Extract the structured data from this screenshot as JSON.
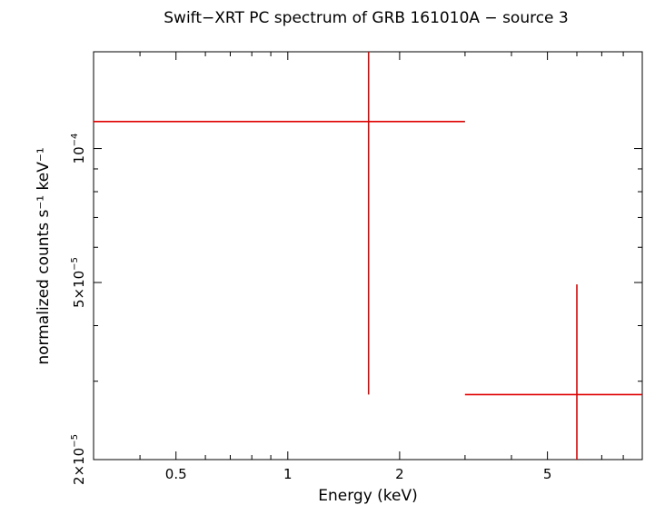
{
  "chart_data": {
    "type": "scatter",
    "title": "Swift−XRT PC spectrum of GRB 161010A − source 3",
    "xlabel": "Energy (keV)",
    "ylabel": "normalized counts s⁻¹ keV⁻¹",
    "x_scale": "log",
    "y_scale": "log",
    "xlim": [
      0.3,
      9.0
    ],
    "ylim": [
      2e-05,
      0.000165
    ],
    "x_ticks": [
      {
        "value": 0.5,
        "label": "0.5"
      },
      {
        "value": 1,
        "label": "1"
      },
      {
        "value": 2,
        "label": "2"
      },
      {
        "value": 5,
        "label": "5"
      }
    ],
    "y_ticks": [
      {
        "value": 2e-05,
        "base": "2×10",
        "exp": "−5"
      },
      {
        "value": 5e-05,
        "base": "5×10",
        "exp": "−5"
      },
      {
        "value": 0.0001,
        "base": "10",
        "exp": "−4"
      }
    ],
    "grid": false,
    "series": [
      {
        "color": "#e00000",
        "points": [
          {
            "x": 1.65,
            "x_low": 0.3,
            "x_high": 3.0,
            "y": 0.000115,
            "y_low": 2.8e-05,
            "y_high": 0.000165
          },
          {
            "x": 6.0,
            "x_low": 3.0,
            "x_high": 9.0,
            "y": 2.8e-05,
            "y_low": 2e-05,
            "y_high": 4.95e-05
          }
        ]
      }
    ]
  }
}
